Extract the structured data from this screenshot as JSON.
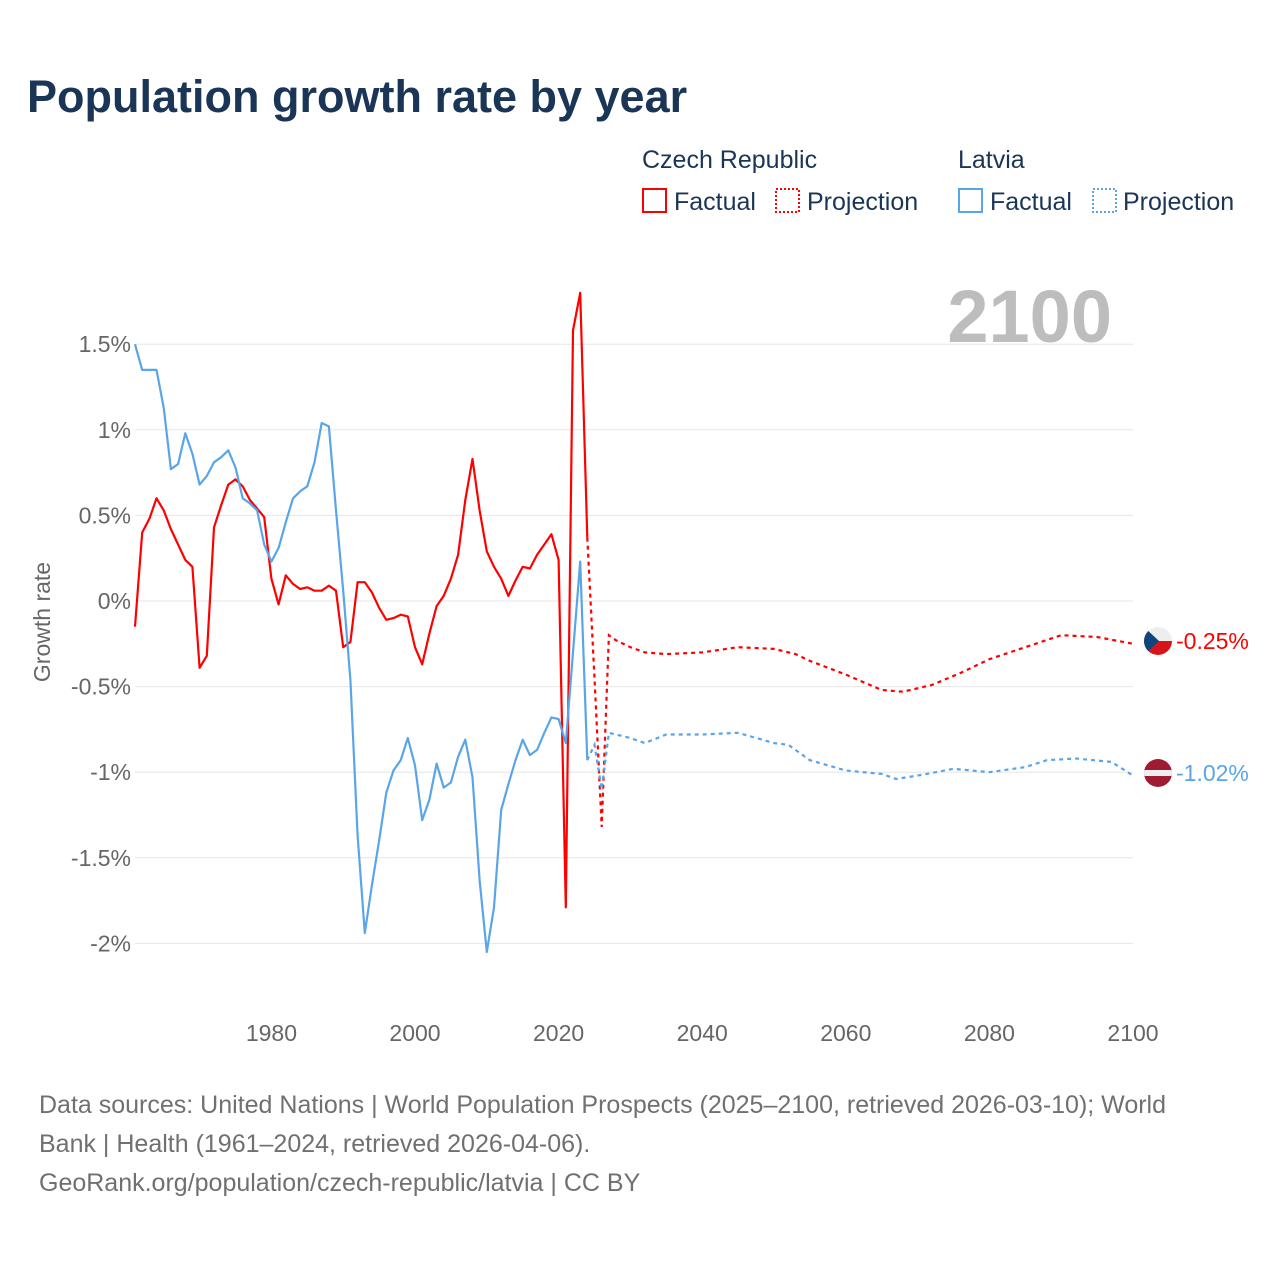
{
  "chart_data": {
    "type": "line",
    "title": "Population growth rate by year",
    "ylabel": "Growth rate",
    "xlabel": "",
    "xlim": [
      1961,
      2100
    ],
    "ylim": [
      -2.3,
      1.8
    ],
    "x_ticks": [
      1980,
      2000,
      2020,
      2040,
      2060,
      2080,
      2100
    ],
    "y_ticks": [
      1.5,
      1,
      0.5,
      0,
      -0.5,
      -1,
      -1.5,
      -2
    ],
    "y_tick_labels": [
      "1.5%",
      "1%",
      "0.5%",
      "0%",
      "-0.5%",
      "-1%",
      "-1.5%",
      "-2%"
    ],
    "grid": "horizontal",
    "current_year_label": "2100",
    "legend": {
      "placement": "top-right",
      "groups": [
        {
          "name": "Czech Republic",
          "factual": "Factual",
          "projection": "Projection",
          "color": "#ff0000"
        },
        {
          "name": "Latvia",
          "factual": "Factual",
          "projection": "Projection",
          "color": "#5aa5e8"
        }
      ]
    },
    "series": [
      {
        "name": "Czech Republic",
        "color": "#ff0000",
        "end_label": "-0.25%",
        "flag": "czech-flag",
        "factual": {
          "x": [
            1961,
            1962,
            1963,
            1964,
            1965,
            1966,
            1967,
            1968,
            1969,
            1970,
            1971,
            1972,
            1973,
            1974,
            1975,
            1976,
            1977,
            1978,
            1979,
            1980,
            1981,
            1982,
            1983,
            1984,
            1985,
            1986,
            1987,
            1988,
            1989,
            1990,
            1991,
            1992,
            1993,
            1994,
            1995,
            1996,
            1997,
            1998,
            1999,
            2000,
            2001,
            2002,
            2003,
            2004,
            2005,
            2006,
            2007,
            2008,
            2009,
            2010,
            2011,
            2012,
            2013,
            2014,
            2015,
            2016,
            2017,
            2018,
            2019,
            2020,
            2021,
            2022,
            2023,
            2024
          ],
          "y": [
            -0.15,
            0.4,
            0.48,
            0.6,
            0.53,
            0.42,
            0.33,
            0.24,
            0.2,
            -0.39,
            -0.32,
            0.43,
            0.56,
            0.68,
            0.71,
            0.67,
            0.59,
            0.54,
            0.49,
            0.13,
            -0.02,
            0.15,
            0.1,
            0.07,
            0.08,
            0.06,
            0.06,
            0.09,
            0.06,
            -0.27,
            -0.24,
            0.11,
            0.11,
            0.05,
            -0.04,
            -0.11,
            -0.1,
            -0.08,
            -0.09,
            -0.27,
            -0.37,
            -0.19,
            -0.03,
            0.03,
            0.13,
            0.27,
            0.59,
            0.83,
            0.53,
            0.29,
            0.2,
            0.13,
            0.03,
            0.12,
            0.2,
            0.19,
            0.27,
            0.33,
            0.39,
            0.24,
            -1.79,
            1.58,
            1.8,
            0.37
          ]
        },
        "projection": {
          "x": [
            2024,
            2025,
            2026,
            2027,
            2028,
            2030,
            2032,
            2035,
            2040,
            2045,
            2050,
            2053,
            2055,
            2060,
            2065,
            2068,
            2072,
            2076,
            2080,
            2085,
            2090,
            2095,
            2100
          ],
          "y": [
            0.37,
            -0.45,
            -1.32,
            -0.2,
            -0.23,
            -0.27,
            -0.3,
            -0.31,
            -0.3,
            -0.27,
            -0.28,
            -0.31,
            -0.35,
            -0.43,
            -0.52,
            -0.53,
            -0.49,
            -0.42,
            -0.34,
            -0.27,
            -0.2,
            -0.21,
            -0.25
          ]
        }
      },
      {
        "name": "Latvia",
        "color": "#5aa5e8",
        "end_label": "-1.02%",
        "flag": "latvia-flag",
        "factual": {
          "x": [
            1961,
            1962,
            1963,
            1964,
            1965,
            1966,
            1967,
            1968,
            1969,
            1970,
            1971,
            1972,
            1973,
            1974,
            1975,
            1976,
            1977,
            1978,
            1979,
            1980,
            1981,
            1982,
            1983,
            1984,
            1985,
            1986,
            1987,
            1988,
            1989,
            1990,
            1991,
            1992,
            1993,
            1994,
            1995,
            1996,
            1997,
            1998,
            1999,
            2000,
            2001,
            2002,
            2003,
            2004,
            2005,
            2006,
            2007,
            2008,
            2009,
            2010,
            2011,
            2012,
            2013,
            2014,
            2015,
            2016,
            2017,
            2018,
            2019,
            2020,
            2021,
            2022,
            2023,
            2024
          ],
          "y": [
            1.5,
            1.35,
            1.35,
            1.35,
            1.13,
            0.77,
            0.8,
            0.98,
            0.86,
            0.68,
            0.73,
            0.81,
            0.84,
            0.88,
            0.78,
            0.6,
            0.57,
            0.53,
            0.33,
            0.23,
            0.31,
            0.46,
            0.6,
            0.64,
            0.67,
            0.81,
            1.04,
            1.02,
            0.53,
            0.06,
            -0.46,
            -1.37,
            -1.94,
            -1.66,
            -1.4,
            -1.12,
            -0.99,
            -0.93,
            -0.8,
            -0.96,
            -1.28,
            -1.16,
            -0.95,
            -1.09,
            -1.06,
            -0.91,
            -0.81,
            -1.03,
            -1.63,
            -2.05,
            -1.79,
            -1.22,
            -1.07,
            -0.93,
            -0.81,
            -0.9,
            -0.87,
            -0.77,
            -0.68,
            -0.69,
            -0.83,
            -0.3,
            0.23,
            -0.93
          ]
        },
        "projection": {
          "x": [
            2024,
            2025,
            2026,
            2027,
            2030,
            2032,
            2035,
            2040,
            2045,
            2050,
            2052,
            2055,
            2060,
            2065,
            2067,
            2070,
            2075,
            2080,
            2085,
            2088,
            2092,
            2097,
            2100
          ],
          "y": [
            -0.93,
            -0.84,
            -1.1,
            -0.77,
            -0.8,
            -0.83,
            -0.78,
            -0.78,
            -0.77,
            -0.83,
            -0.84,
            -0.93,
            -0.99,
            -1.01,
            -1.04,
            -1.02,
            -0.98,
            -1.0,
            -0.97,
            -0.93,
            -0.92,
            -0.94,
            -1.02
          ]
        }
      }
    ]
  },
  "footer": {
    "line1": "Data sources: United Nations | World Population Prospects (2025–2100, retrieved 2026-03-10); World",
    "line2": "Bank | Health (1961–2024, retrieved 2026-04-06).",
    "line3": "GeoRank.org/population/czech-republic/latvia | CC BY"
  }
}
